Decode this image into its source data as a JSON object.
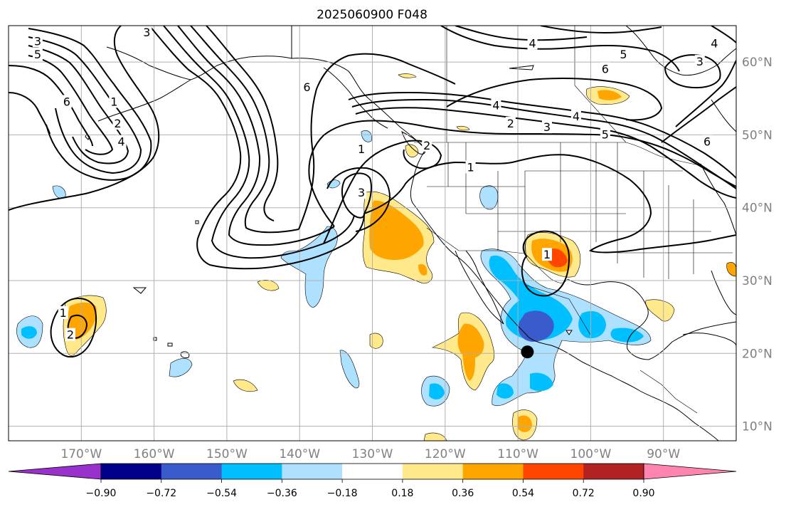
{
  "title": "2025060900 F048",
  "map": {
    "projection": "PlateCarree",
    "extent": {
      "lon_min": -180,
      "lon_max": -80,
      "lat_min": 8,
      "lat_max": 65
    },
    "grid": true,
    "lat_ticks": [
      {
        "value": 60,
        "label": "60°N"
      },
      {
        "value": 50,
        "label": "50°N"
      },
      {
        "value": 40,
        "label": "40°N"
      },
      {
        "value": 30,
        "label": "30°N"
      },
      {
        "value": 20,
        "label": "20°N"
      },
      {
        "value": 10,
        "label": "10°N"
      }
    ],
    "lon_ticks": [
      {
        "value": -170,
        "label": "170°W"
      },
      {
        "value": -160,
        "label": "160°W"
      },
      {
        "value": -150,
        "label": "150°W"
      },
      {
        "value": -140,
        "label": "140°W"
      },
      {
        "value": -130,
        "label": "130°W"
      },
      {
        "value": -120,
        "label": "120°W"
      },
      {
        "value": -110,
        "label": "110°W"
      },
      {
        "value": -100,
        "label": "100°W"
      },
      {
        "value": -90,
        "label": "90°W"
      }
    ],
    "marker": {
      "lon": -108.7,
      "lat": 20.2,
      "color": "#000000"
    },
    "contour_labels": [
      {
        "text": "3",
        "lon": -176,
        "lat": 62.8
      },
      {
        "text": "5",
        "lon": -176,
        "lat": 61.0
      },
      {
        "text": "6",
        "lon": -172,
        "lat": 54.5
      },
      {
        "text": "1",
        "lon": -165.5,
        "lat": 54.5
      },
      {
        "text": "2",
        "lon": -165,
        "lat": 51.5
      },
      {
        "text": "4",
        "lon": -164.5,
        "lat": 49.0
      },
      {
        "text": "3",
        "lon": -161,
        "lat": 64.0
      },
      {
        "text": "4",
        "lon": -108,
        "lat": 62.5
      },
      {
        "text": "5",
        "lon": -95.5,
        "lat": 61.0
      },
      {
        "text": "6",
        "lon": -98,
        "lat": 59.0
      },
      {
        "text": "4",
        "lon": -113,
        "lat": 54.0
      },
      {
        "text": "2",
        "lon": -111,
        "lat": 51.5
      },
      {
        "text": "3",
        "lon": -106,
        "lat": 51.0
      },
      {
        "text": "4",
        "lon": -102,
        "lat": 52.5
      },
      {
        "text": "5",
        "lon": -98,
        "lat": 50.0
      },
      {
        "text": "3",
        "lon": -85,
        "lat": 60.0
      },
      {
        "text": "4",
        "lon": -83,
        "lat": 62.5
      },
      {
        "text": "6",
        "lon": -84,
        "lat": 49.0
      },
      {
        "text": "6",
        "lon": -139,
        "lat": 56.5
      },
      {
        "text": "2",
        "lon": -122.5,
        "lat": 48.5
      },
      {
        "text": "1",
        "lon": -131.5,
        "lat": 48.0
      },
      {
        "text": "1",
        "lon": -116.5,
        "lat": 45.5
      },
      {
        "text": "3",
        "lon": -131.5,
        "lat": 42.0
      },
      {
        "text": "1",
        "lon": -106,
        "lat": 33.5
      },
      {
        "text": "1",
        "lon": -172.5,
        "lat": 25.5
      },
      {
        "text": "2",
        "lon": -171.5,
        "lat": 22.5
      }
    ],
    "colors": {
      "ocean": "#ffffff",
      "land_outline": "#000000",
      "grid": "#b0b0b0",
      "contour": "#000000"
    }
  },
  "colorbar": {
    "boundaries": [
      -0.9,
      -0.72,
      -0.54,
      -0.36,
      -0.18,
      0.18,
      0.36,
      0.54,
      0.72,
      0.9
    ],
    "tick_labels": [
      "−0.90",
      "−0.72",
      "−0.54",
      "−0.36",
      "−0.18",
      "0.18",
      "0.36",
      "0.54",
      "0.72",
      "0.90"
    ],
    "under_color": "#9932cc",
    "over_color": "#ff85b0",
    "segment_colors": [
      "#00008b",
      "#3a5bcc",
      "#00bfff",
      "#aee0ff",
      "#ffffff",
      "#ffe98a",
      "#ffa500",
      "#ff4500",
      "#b22222"
    ]
  }
}
